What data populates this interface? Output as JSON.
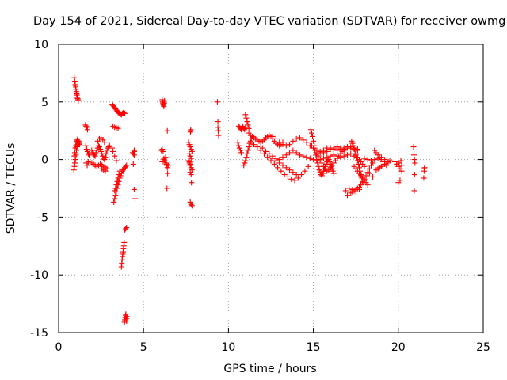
{
  "chart_data": {
    "type": "scatter",
    "title": "Day 154 of 2021, Sidereal Day-to-day VTEC variation (SDTVAR) for receiver owmg",
    "xlabel": "GPS time / hours",
    "ylabel": "SDTVAR / TECUs",
    "xlim": [
      0,
      25
    ],
    "ylim": [
      -15,
      10
    ],
    "xticks": [
      0,
      5,
      10,
      15,
      20,
      25
    ],
    "yticks": [
      -15,
      -10,
      -5,
      0,
      5,
      10
    ],
    "xtick_labels": [
      "0",
      "5",
      "10",
      "15",
      "20",
      "25"
    ],
    "ytick_labels": [
      "-15",
      "-10",
      "-5",
      "0",
      "5",
      "10"
    ],
    "grid": true,
    "marker": "+",
    "color": "#ff0000",
    "series": [
      {
        "name": "SDTVAR",
        "x": [
          0.92,
          0.95,
          0.98,
          1.0,
          1.02,
          1.04,
          1.06,
          1.08,
          1.1,
          1.12,
          1.14,
          1.16,
          0.9,
          0.93,
          0.96,
          0.99,
          1.02,
          1.05,
          1.08,
          1.11,
          1.14,
          1.17,
          1.2,
          1.23,
          0.92,
          0.95,
          0.98,
          1.01,
          1.04,
          1.07,
          1.1,
          1.13,
          1.16,
          1.19,
          1.58,
          1.62,
          1.66,
          1.7,
          1.6,
          1.65,
          1.7,
          1.75,
          1.8,
          1.62,
          1.68,
          1.74,
          1.95,
          2.0,
          2.05,
          2.1,
          2.15,
          2.2,
          2.25,
          2.3,
          2.35,
          2.4,
          2.45,
          2.5,
          2.55,
          2.6,
          2.65,
          2.7,
          2.75,
          2.8,
          2.85,
          2.9,
          2.95,
          3.0,
          1.95,
          2.05,
          2.15,
          2.25,
          2.35,
          2.45,
          2.55,
          2.65,
          2.75,
          2.85,
          2.3,
          2.4,
          2.5,
          2.6,
          2.7,
          2.55,
          2.65,
          2.75,
          3.15,
          3.2,
          3.25,
          3.3,
          3.35,
          3.4,
          3.45,
          3.5,
          3.55,
          3.6,
          3.65,
          3.7,
          3.75,
          3.8,
          3.85,
          3.9,
          3.2,
          3.3,
          3.4,
          3.5,
          3.25,
          3.3,
          3.35,
          3.4,
          3.45,
          3.5,
          3.55,
          3.6,
          3.65,
          3.7,
          3.75,
          3.8,
          3.85,
          3.9,
          3.95,
          4.0,
          3.3,
          3.35,
          3.4,
          3.45,
          3.5,
          3.55,
          3.6,
          3.15,
          3.2,
          3.3,
          3.4,
          3.7,
          3.72,
          3.74,
          3.76,
          3.78,
          3.8,
          3.82,
          3.84,
          3.86,
          3.9,
          3.95,
          4.0,
          3.88,
          3.9,
          3.92,
          3.94,
          3.96,
          3.98,
          4.0,
          4.02,
          4.35,
          4.4,
          4.45,
          4.4,
          4.45,
          4.5,
          4.45,
          4.45,
          6.1,
          6.12,
          6.14,
          6.16,
          6.18,
          6.2,
          6.22,
          6.24,
          6.05,
          6.1,
          6.15,
          6.2,
          6.25,
          6.3,
          6.35,
          6.4,
          6.1,
          6.2,
          6.3,
          6.35,
          6.4,
          6.45,
          6.42,
          6.38,
          7.65,
          7.7,
          7.75,
          7.8,
          7.85,
          7.7,
          7.75,
          7.8,
          7.65,
          7.7,
          7.75,
          7.8,
          7.85,
          7.75,
          7.8,
          7.7,
          7.75,
          7.75,
          7.8,
          7.85,
          7.82,
          7.78,
          7.78,
          7.76,
          9.35,
          9.38,
          9.38,
          9.4,
          9.42,
          10.55,
          10.6,
          10.65,
          10.7,
          10.75,
          10.6,
          10.65,
          10.7,
          10.75,
          10.8,
          10.85,
          10.9,
          10.95,
          11.0,
          10.9,
          10.95,
          11.0,
          11.05,
          11.1,
          11.15,
          11.2,
          11.25,
          11.3,
          11.35,
          11.0,
          11.05,
          11.1,
          11.15,
          11.2,
          11.2,
          11.3,
          11.4,
          11.5,
          11.6,
          11.7,
          11.8,
          11.9,
          12.0,
          12.1,
          12.2,
          12.3,
          12.4,
          12.5,
          12.6,
          12.7,
          12.8,
          12.9,
          13.0,
          13.1,
          13.2,
          11.3,
          11.5,
          11.7,
          11.9,
          12.1,
          12.3,
          12.5,
          12.7,
          12.9,
          13.1,
          13.3,
          13.5,
          13.7,
          13.9,
          14.1,
          14.3,
          14.5,
          14.7,
          12.6,
          12.8,
          13.0,
          13.2,
          13.4,
          13.6,
          13.8,
          14.0,
          14.2,
          14.4,
          14.6,
          14.8,
          15.0,
          15.2,
          15.4,
          15.6,
          15.8,
          16.0,
          16.2,
          16.4,
          16.6,
          16.8,
          17.0,
          17.2,
          17.4,
          17.6,
          12.0,
          12.2,
          12.4,
          12.6,
          12.8,
          13.0,
          13.2,
          13.4,
          13.6,
          13.8,
          14.0,
          14.2,
          14.4,
          14.6,
          14.8,
          15.0,
          15.2,
          15.4,
          15.6,
          15.8,
          16.0,
          16.2,
          16.4,
          16.6,
          16.8,
          17.0,
          17.2,
          17.4,
          12.6,
          12.8,
          13.0,
          13.2,
          13.4,
          13.6,
          13.8,
          14.0,
          14.85,
          14.9,
          14.95,
          15.0,
          15.05,
          15.1,
          15.15,
          15.2,
          15.25,
          15.3,
          15.35,
          15.4,
          15.45,
          15.5,
          15.55,
          15.6,
          15.65,
          15.7,
          15.75,
          15.8,
          15.85,
          15.9,
          15.95,
          16.0,
          16.05,
          16.1,
          16.15,
          16.2,
          14.9,
          15.0,
          15.1,
          15.2,
          15.3,
          15.4,
          15.5,
          15.6,
          15.7,
          15.8,
          15.9,
          16.0,
          16.1,
          16.2,
          16.3,
          16.4,
          16.5,
          16.6,
          16.7,
          16.8,
          15.4,
          15.6,
          15.8,
          16.0,
          16.2,
          16.4,
          16.6,
          16.8,
          17.0,
          17.2,
          17.4,
          17.6,
          16.9,
          17.1,
          17.3,
          17.5,
          17.7,
          17.0,
          17.2,
          17.4,
          17.25,
          17.3,
          17.35,
          17.4,
          17.45,
          17.5,
          17.55,
          17.6,
          17.65,
          17.7,
          17.75,
          17.8,
          17.85,
          17.9,
          17.3,
          17.4,
          17.5,
          17.6,
          17.7,
          17.8,
          17.9,
          18.0,
          18.1,
          18.2,
          18.3,
          18.4,
          18.5,
          17.4,
          17.5,
          17.6,
          17.7,
          17.8,
          17.9,
          18.0,
          18.1,
          18.2,
          17.5,
          17.6,
          17.7,
          17.8,
          17.9,
          18.0,
          18.0,
          18.2,
          18.4,
          18.6,
          18.8,
          19.0,
          19.2,
          19.4,
          18.6,
          18.7,
          18.8,
          18.9,
          19.0,
          19.1,
          19.2,
          19.3,
          19.4,
          19.5,
          18.7,
          18.8,
          18.9,
          19.0,
          19.1,
          19.2,
          18.3,
          18.5,
          19.8,
          19.9,
          20.0,
          20.1,
          20.2,
          20.0,
          20.1,
          20.2,
          20.05,
          20.15,
          20.9,
          20.92,
          20.95,
          20.98,
          20.96,
          20.94,
          21.5,
          21.52,
          21.55,
          21.53
        ],
        "y": [
          7.1,
          6.8,
          6.5,
          6.3,
          6.1,
          5.9,
          5.7,
          5.6,
          5.4,
          5.3,
          5.2,
          5.1,
          -0.9,
          -0.6,
          -0.3,
          0.0,
          0.4,
          0.8,
          1.1,
          1.3,
          1.5,
          1.6,
          1.5,
          1.3,
          0.3,
          0.6,
          1.0,
          1.2,
          1.5,
          1.6,
          1.7,
          1.8,
          1.6,
          1.4,
          3.0,
          2.9,
          2.8,
          2.6,
          1.2,
          0.9,
          0.7,
          0.5,
          0.4,
          -0.3,
          -0.5,
          -0.2,
          0.8,
          0.6,
          0.5,
          0.4,
          0.3,
          0.6,
          0.8,
          1.0,
          1.2,
          1.1,
          0.9,
          0.7,
          0.5,
          0.3,
          0.1,
          0.0,
          0.2,
          0.5,
          0.8,
          1.0,
          1.1,
          1.2,
          -0.3,
          -0.4,
          -0.5,
          -0.6,
          -0.5,
          -0.4,
          -0.5,
          -0.6,
          -0.7,
          -0.8,
          1.6,
          1.8,
          1.9,
          1.7,
          1.5,
          -0.8,
          -0.9,
          -1.0,
          4.8,
          4.7,
          4.6,
          4.5,
          4.4,
          4.3,
          4.2,
          4.1,
          4.05,
          4.0,
          3.95,
          3.9,
          4.0,
          4.05,
          4.1,
          4.0,
          2.9,
          2.8,
          2.75,
          2.7,
          -3.7,
          -3.4,
          -3.1,
          -2.8,
          -2.5,
          -2.2,
          -1.9,
          -1.6,
          -1.4,
          -1.2,
          -1.0,
          -0.9,
          -0.8,
          -0.7,
          -0.6,
          -0.5,
          -2.7,
          -2.5,
          -2.2,
          -1.9,
          -1.6,
          -1.3,
          -1.0,
          1.0,
          0.7,
          0.3,
          -0.1,
          -9.3,
          -9.0,
          -8.7,
          -8.4,
          -8.2,
          -8.0,
          -7.7,
          -7.5,
          -7.2,
          -6.1,
          -6.0,
          -5.9,
          -14.1,
          -13.9,
          -13.7,
          -13.5,
          -13.4,
          -13.8,
          -14.0,
          -13.6,
          0.6,
          0.5,
          0.7,
          -0.4,
          -2.6,
          -3.4,
          0.8,
          0.4,
          5.2,
          5.0,
          4.9,
          4.8,
          4.7,
          4.6,
          4.9,
          5.1,
          0.8,
          0.9,
          0.7,
          0.1,
          -0.1,
          -0.3,
          -0.5,
          -0.7,
          -0.2,
          0.0,
          0.2,
          -0.4,
          2.5,
          -0.5,
          -1.2,
          -2.5,
          1.5,
          1.3,
          1.1,
          0.9,
          0.7,
          0.5,
          0.3,
          0.1,
          -0.1,
          -0.3,
          -0.5,
          -0.7,
          -0.9,
          -1.1,
          -1.3,
          -0.2,
          -0.4,
          -3.7,
          -3.9,
          -4.0,
          -2.0,
          2.6,
          2.5,
          2.4,
          5.0,
          3.3,
          2.8,
          2.5,
          2.1,
          1.5,
          1.2,
          1.0,
          0.8,
          0.6,
          2.9,
          2.8,
          2.7,
          2.6,
          2.8,
          2.9,
          2.7,
          2.6,
          2.8,
          -0.5,
          -0.3,
          -0.1,
          0.2,
          0.5,
          0.8,
          1.1,
          1.4,
          1.6,
          1.8,
          3.9,
          3.6,
          3.3,
          3.0,
          2.7,
          2.3,
          2.1,
          2.0,
          1.9,
          1.8,
          1.7,
          1.6,
          1.5,
          1.6,
          1.7,
          1.9,
          2.0,
          2.1,
          2.0,
          1.8,
          1.6,
          1.4,
          1.3,
          1.2,
          1.3,
          1.5,
          1.5,
          1.3,
          1.1,
          0.8,
          0.5,
          0.2,
          -0.1,
          -0.4,
          -0.7,
          -1.0,
          -1.3,
          -1.5,
          -1.7,
          -1.8,
          -1.6,
          -1.3,
          -1.0,
          -0.6,
          2.0,
          1.8,
          1.5,
          1.3,
          1.2,
          1.3,
          1.6,
          1.8,
          1.9,
          1.7,
          1.5,
          1.2,
          1.0,
          0.8,
          0.7,
          0.6,
          0.7,
          0.9,
          1.0,
          1.1,
          1.0,
          0.9,
          1.0,
          1.1,
          1.0,
          0.9,
          1.0,
          0.7,
          0.5,
          0.3,
          0.1,
          0.0,
          0.2,
          0.4,
          0.6,
          0.8,
          0.6,
          0.4,
          0.3,
          0.2,
          0.1,
          0.0,
          -0.1,
          0.0,
          0.1,
          0.2,
          0.3,
          0.4,
          0.3,
          0.2,
          0.3,
          0.4,
          0.5,
          0.3,
          0.1,
          -0.1,
          -0.3,
          -0.5,
          -0.7,
          -0.9,
          -1.1,
          -1.3,
          2.6,
          2.3,
          2.0,
          1.6,
          1.2,
          0.8,
          0.4,
          0.0,
          -0.3,
          -0.6,
          -0.9,
          -1.1,
          -1.3,
          -1.4,
          -1.2,
          -1.0,
          -0.8,
          -0.6,
          -0.4,
          -0.2,
          -0.1,
          0.0,
          -0.2,
          -0.4,
          -0.6,
          -0.8,
          -1.0,
          -1.2,
          1.2,
          1.0,
          0.8,
          0.5,
          0.3,
          0.0,
          -0.3,
          -0.6,
          -0.8,
          -1.0,
          -0.9,
          -0.7,
          -0.5,
          -0.3,
          -0.1,
          0.1,
          0.3,
          0.5,
          0.7,
          0.8,
          0.6,
          0.8,
          1.0,
          1.0,
          0.9,
          0.8,
          0.9,
          1.0,
          1.1,
          1.0,
          0.9,
          0.8,
          -2.7,
          -2.5,
          -2.6,
          -2.8,
          -2.6,
          -3.1,
          -2.9,
          -2.7,
          1.6,
          1.4,
          1.2,
          1.0,
          0.8,
          0.5,
          0.2,
          -0.1,
          -0.4,
          -0.7,
          -1.0,
          -1.3,
          -1.6,
          -1.9,
          -2.8,
          -2.7,
          -2.6,
          -2.5,
          -2.4,
          -2.2,
          -2.0,
          -1.7,
          -1.4,
          -1.1,
          -0.8,
          -0.5,
          -0.3,
          -0.6,
          -0.8,
          -1.0,
          -1.2,
          -1.4,
          -1.6,
          -1.8,
          -2.0,
          -2.2,
          0.4,
          0.2,
          0.0,
          -0.2,
          -0.4,
          -0.6,
          0.1,
          0.0,
          -0.1,
          0.0,
          0.1,
          0.2,
          0.0,
          -0.2,
          0.8,
          0.6,
          0.4,
          0.2,
          0.0,
          -0.2,
          -0.4,
          -0.5,
          -0.3,
          -0.1,
          -0.9,
          -0.8,
          -0.7,
          -0.6,
          -0.5,
          -0.4,
          -1.2,
          -1.5,
          -0.2,
          -0.4,
          -0.6,
          -0.8,
          -1.0,
          -2.0,
          -1.8,
          -0.5,
          -0.3,
          -0.1,
          1.1,
          0.4,
          0.0,
          -0.3,
          -1.3,
          -2.7,
          -1.6,
          -1.0,
          -0.7,
          -0.8
        ]
      }
    ]
  }
}
